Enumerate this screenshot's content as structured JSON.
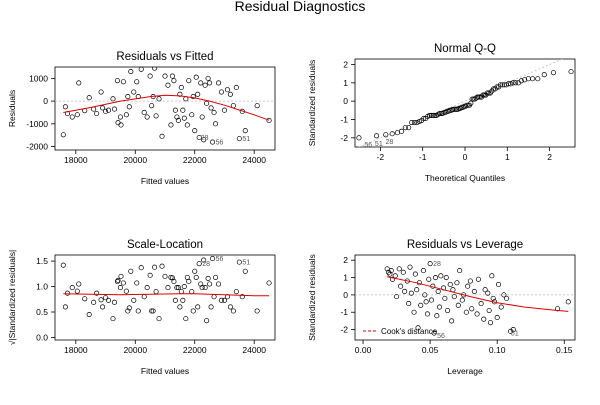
{
  "title": "Residual Diagnostics",
  "colors": {
    "points": "#000000",
    "smooth": "#dd0000",
    "reference": "#bbbbbb",
    "cooks": "#dd0000"
  },
  "chart_data": [
    {
      "type": "scatter",
      "title": "Residuals vs Fitted",
      "xlabel": "Fitted values",
      "ylabel": "Residuals",
      "xlim": [
        17300,
        24700
      ],
      "ylim": [
        -2150,
        1500
      ],
      "xticks": [
        18000,
        20000,
        22000,
        24000
      ],
      "yticks": [
        -2000,
        -1000,
        0,
        1000
      ],
      "reference_line": 0,
      "x": [
        17580,
        17650,
        17720,
        17880,
        18050,
        18100,
        18300,
        18450,
        18600,
        18700,
        18850,
        18900,
        19000,
        19100,
        19250,
        19300,
        19400,
        19420,
        19500,
        19520,
        19600,
        19700,
        19750,
        19800,
        19850,
        19950,
        20050,
        20100,
        20200,
        20300,
        20400,
        20500,
        20550,
        20600,
        20650,
        20700,
        20800,
        20900,
        21000,
        21100,
        21200,
        21250,
        21300,
        21350,
        21400,
        21450,
        21500,
        21550,
        21600,
        21650,
        21700,
        21750,
        21800,
        21900,
        21950,
        22000,
        22050,
        22100,
        22150,
        22200,
        22250,
        22300,
        22350,
        22400,
        22450,
        22500,
        22550,
        22600,
        22650,
        22700,
        22800,
        22900,
        23000,
        23100,
        23200,
        23300,
        23400,
        23500,
        23600,
        23700,
        24100,
        24500
      ],
      "y": [
        -1480,
        -250,
        -550,
        -700,
        -600,
        800,
        -420,
        150,
        -350,
        -550,
        400,
        -300,
        -450,
        -400,
        100,
        -350,
        900,
        -950,
        -700,
        -1050,
        850,
        -600,
        200,
        -250,
        1300,
        400,
        850,
        200,
        1400,
        -500,
        -700,
        1100,
        -200,
        200,
        1450,
        -650,
        100,
        -1550,
        1100,
        700,
        -1050,
        1100,
        900,
        -400,
        -700,
        -850,
        300,
        600,
        -400,
        -750,
        100,
        -1050,
        900,
        -600,
        200,
        -1300,
        1050,
        300,
        -1600,
        800,
        -700,
        -1700,
        700,
        -100,
        1000,
        800,
        -300,
        -1800,
        -500,
        -1000,
        800,
        400,
        -400,
        500,
        300,
        -200,
        600,
        -1650,
        -450,
        -1300,
        -200,
        -850
      ],
      "smooth_x": [
        17580,
        18500,
        19500,
        20500,
        21000,
        21500,
        22000,
        22500,
        23000,
        23500,
        24000,
        24500
      ],
      "smooth_y": [
        -500,
        -280,
        0,
        200,
        260,
        230,
        140,
        0,
        -180,
        -390,
        -600,
        -840
      ],
      "point_labels": [
        {
          "label": "28",
          "x": 22100,
          "y": -1600
        },
        {
          "label": "56",
          "x": 22600,
          "y": -1800
        },
        {
          "label": "51",
          "x": 23500,
          "y": -1650
        }
      ]
    },
    {
      "type": "scatter",
      "title": "Normal Q-Q",
      "xlabel": "Theoretical Quantiles",
      "ylabel": "Standardized residuals",
      "xlim": [
        -2.6,
        2.6
      ],
      "ylim": [
        -2.5,
        2.3
      ],
      "xticks": [
        -2,
        -1,
        0,
        1,
        2
      ],
      "yticks": [
        -2,
        -1,
        0,
        1,
        2
      ],
      "reference_line": {
        "intercept": 0,
        "slope": 1
      },
      "point_labels": [
        {
          "label": "56",
          "x": -2.45,
          "y": -2.35
        },
        {
          "label": "51",
          "x": -2.2,
          "y": -2.3
        },
        {
          "label": "28",
          "x": -1.95,
          "y": -2.2
        }
      ]
    },
    {
      "type": "scatter",
      "title": "Scale-Location",
      "xlabel": "Fitted values",
      "ylabel": "√|Standardized residuals|",
      "xlim": [
        17300,
        24700
      ],
      "ylim": [
        -0.05,
        1.62
      ],
      "xticks": [
        18000,
        20000,
        22000,
        24000
      ],
      "yticks": [
        0.0,
        0.5,
        1.0,
        1.5
      ],
      "ytick_labels": [
        "0.0",
        "0.5",
        "1.0",
        "1.5"
      ],
      "x": [
        17580,
        17650,
        17720,
        17880,
        18050,
        18100,
        18300,
        18450,
        18600,
        18700,
        18850,
        18900,
        19000,
        19100,
        19250,
        19300,
        19400,
        19420,
        19500,
        19520,
        19600,
        19700,
        19750,
        19800,
        19850,
        19950,
        20050,
        20100,
        20200,
        20300,
        20400,
        20500,
        20550,
        20600,
        20650,
        20700,
        20800,
        20900,
        21000,
        21100,
        21200,
        21250,
        21300,
        21350,
        21400,
        21450,
        21500,
        21550,
        21600,
        21650,
        21700,
        21750,
        21800,
        21900,
        21950,
        22000,
        22050,
        22100,
        22150,
        22200,
        22250,
        22300,
        22350,
        22400,
        22450,
        22500,
        22550,
        22600,
        22650,
        22700,
        22800,
        22900,
        23000,
        23100,
        23200,
        23300,
        23400,
        23500,
        23600,
        23700,
        24100,
        24500
      ],
      "y": [
        1.42,
        0.6,
        0.87,
        0.98,
        0.91,
        1.05,
        0.76,
        0.45,
        0.69,
        0.87,
        0.74,
        0.6,
        0.78,
        0.73,
        0.37,
        0.69,
        1.1,
        1.12,
        0.98,
        1.2,
        1.07,
        0.91,
        0.52,
        0.58,
        1.3,
        0.73,
        1.07,
        0.52,
        1.37,
        0.8,
        0.98,
        1.22,
        0.52,
        0.52,
        1.38,
        0.9,
        0.37,
        1.4,
        1.2,
        0.98,
        1.18,
        1.17,
        1.1,
        0.73,
        0.98,
        0.98,
        0.6,
        0.9,
        0.73,
        1.0,
        0.37,
        1.18,
        1.1,
        0.9,
        0.52,
        1.3,
        1.18,
        0.6,
        1.45,
        1.05,
        0.98,
        1.52,
        0.98,
        0.33,
        1.16,
        1.05,
        0.6,
        1.55,
        0.8,
        1.18,
        1.05,
        0.73,
        0.73,
        0.8,
        0.6,
        0.52,
        0.9,
        1.48,
        0.8,
        1.3,
        0.52,
        1.07
      ],
      "smooth_x": [
        17580,
        18500,
        19500,
        20500,
        21500,
        22000,
        22500,
        23000,
        24000,
        24500
      ],
      "smooth_y": [
        0.86,
        0.85,
        0.84,
        0.85,
        0.86,
        0.86,
        0.85,
        0.84,
        0.82,
        0.82
      ],
      "point_labels": [
        {
          "label": "56",
          "x": 22600,
          "y": 1.55
        },
        {
          "label": "51",
          "x": 23500,
          "y": 1.48
        },
        {
          "label": "28",
          "x": 22150,
          "y": 1.45
        }
      ]
    },
    {
      "type": "scatter",
      "title": "Residuals vs Leverage",
      "xlabel": "Leverage",
      "ylabel": "Standardized residuals",
      "xlim": [
        -0.006,
        0.158
      ],
      "ylim": [
        -2.6,
        2.3
      ],
      "xticks": [
        0.0,
        0.05,
        0.1,
        0.15
      ],
      "xtick_labels": [
        "0.00",
        "0.05",
        "0.10",
        "0.15"
      ],
      "yticks": [
        -2,
        -1,
        0,
        1,
        2
      ],
      "reference_line": 0,
      "x": [
        0.018,
        0.019,
        0.02,
        0.021,
        0.022,
        0.024,
        0.025,
        0.027,
        0.028,
        0.03,
        0.031,
        0.033,
        0.034,
        0.035,
        0.036,
        0.038,
        0.039,
        0.04,
        0.041,
        0.042,
        0.043,
        0.045,
        0.046,
        0.047,
        0.048,
        0.049,
        0.05,
        0.051,
        0.052,
        0.053,
        0.054,
        0.055,
        0.056,
        0.057,
        0.058,
        0.06,
        0.061,
        0.062,
        0.063,
        0.065,
        0.066,
        0.067,
        0.068,
        0.07,
        0.071,
        0.072,
        0.074,
        0.075,
        0.077,
        0.078,
        0.08,
        0.081,
        0.083,
        0.085,
        0.086,
        0.088,
        0.09,
        0.091,
        0.093,
        0.094,
        0.095,
        0.096,
        0.097,
        0.098,
        0.1,
        0.101,
        0.103,
        0.105,
        0.107,
        0.11,
        0.112,
        0.145,
        0.153
      ],
      "y": [
        1.5,
        1.3,
        1.2,
        1.4,
        0.9,
        1.1,
        -0.1,
        1.5,
        0.5,
        1.3,
        0.2,
        0.8,
        -0.5,
        1.6,
        0.1,
        -1.0,
        1.2,
        0.3,
        -1.9,
        0.7,
        -0.6,
        1.4,
        0.0,
        -0.4,
        -1.1,
        0.9,
        1.8,
        -0.3,
        0.5,
        -2.2,
        1.0,
        -1.2,
        0.2,
        -0.7,
        1.1,
        0.4,
        -0.2,
        1.0,
        -0.9,
        0.6,
        -1.5,
        0.3,
        -0.1,
        0.7,
        -0.6,
        1.4,
        -0.3,
        0.0,
        -1.0,
        0.5,
        0.8,
        -0.8,
        0.2,
        -1.1,
        0.9,
        -0.5,
        -1.4,
        0.3,
        0.1,
        -0.9,
        -1.6,
        1.1,
        -0.2,
        -0.4,
        -1.3,
        0.6,
        -0.7,
        0.0,
        -0.2,
        -2.1,
        -2.0,
        -0.8,
        -0.4
      ],
      "smooth_x": [
        0.018,
        0.04,
        0.06,
        0.08,
        0.1,
        0.12,
        0.145,
        0.153
      ],
      "smooth_y": [
        1.05,
        0.7,
        0.3,
        -0.1,
        -0.45,
        -0.7,
        -0.9,
        -0.95
      ],
      "point_labels": [
        {
          "label": "56",
          "x": 0.053,
          "y": -2.35
        },
        {
          "label": "51",
          "x": 0.108,
          "y": -2.2
        },
        {
          "label": "28",
          "x": 0.05,
          "y": 1.8
        }
      ],
      "legend": {
        "label": "Cook's distance",
        "placement": "bottom-left"
      }
    }
  ]
}
